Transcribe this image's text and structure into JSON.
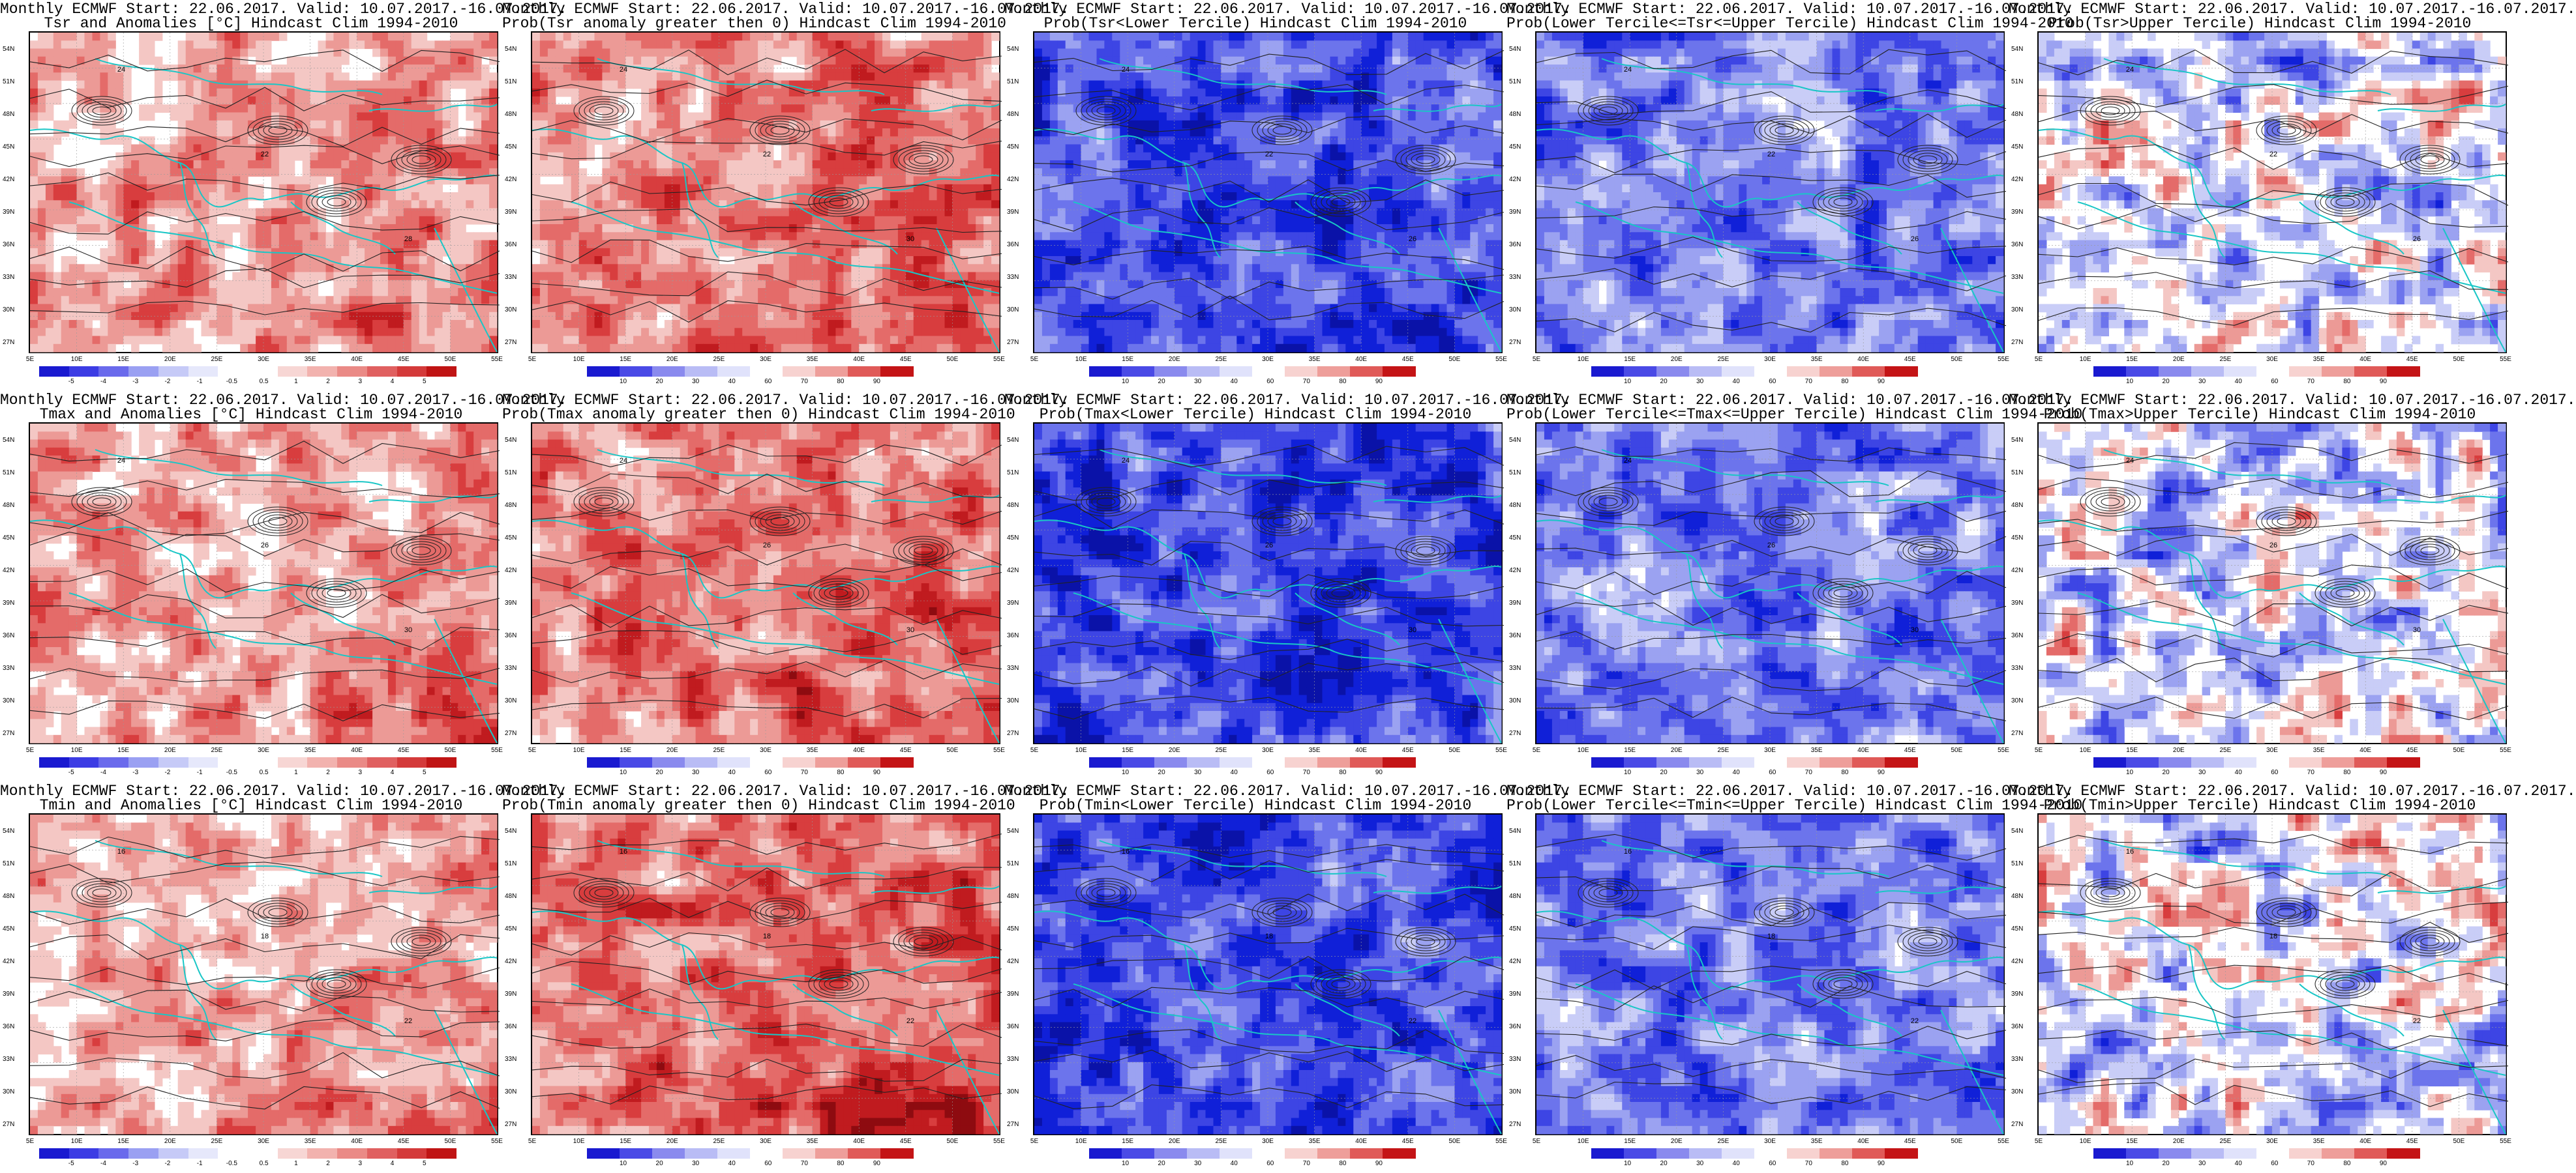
{
  "colors": {
    "warm": [
      "#ffffff",
      "#f4c7c4",
      "#ec9a96",
      "#e46b69",
      "#d83d3e",
      "#c01b1f",
      "#8e0b10"
    ],
    "cool": [
      "#ffffff",
      "#c9cdf7",
      "#9ba2f1",
      "#6c74ec",
      "#3d45e4",
      "#1020d8",
      "#0a12a8"
    ],
    "contour": "#222222",
    "coast": "#19c6c6",
    "anomaly_bar": [
      "#1a1ad0",
      "#3c3ce4",
      "#6a6aec",
      "#9aa0f2",
      "#c6caf7",
      "#e6e8fb",
      "#ffffff",
      "#ffffff",
      "#f7d6d4",
      "#f2b2ae",
      "#ea8a86",
      "#e06060",
      "#d43a3a",
      "#c01414"
    ],
    "prob_bar": [
      "#1a1ad0",
      "#4a4ae6",
      "#8a8aee",
      "#b9bcf5",
      "#e0e2fb",
      "#ffffff",
      "#f7d2d0",
      "#ee9e9a",
      "#e05a58",
      "#c41416"
    ]
  },
  "axes": {
    "lat": [
      "54N",
      "51N",
      "48N",
      "45N",
      "42N",
      "39N",
      "36N",
      "33N",
      "30N",
      "27N"
    ],
    "lon": [
      "5E",
      "10E",
      "15E",
      "20E",
      "25E",
      "30E",
      "35E",
      "40E",
      "45E",
      "50E",
      "55E"
    ]
  },
  "colorbar_ticks": {
    "anomaly": [
      "-5",
      "-4",
      "-3",
      "-2",
      "-1",
      "-0.5",
      "0.5",
      "1",
      "2",
      "3",
      "4",
      "5"
    ],
    "prob": [
      "10",
      "20",
      "30",
      "40",
      "60",
      "70",
      "80",
      "90"
    ]
  },
  "panels": [
    {
      "id": "tsr-anom",
      "title1": "Monthly ECMWF Start: 22.06.2017. Valid: 10.07.2017.-16.07.2017.",
      "title2": "Tsr and Anomalies [°C] Hindcast Clim 1994-2010",
      "bar": "anomaly",
      "bias": 0.25,
      "palette": "warm",
      "contour_labels": [
        "24",
        "22",
        "28"
      ]
    },
    {
      "id": "tsr-pos",
      "title1": "Monthly ECMWF Start: 22.06.2017. Valid: 10.07.2017.-16.07.2017.",
      "title2": "Prob(Tsr anomaly greater then 0) Hindcast Clim 1994-2010",
      "bar": "prob",
      "bias": 0.45,
      "palette": "warm",
      "contour_labels": [
        "24",
        "22",
        "30"
      ]
    },
    {
      "id": "tsr-low",
      "title1": "Monthly ECMWF Start: 22.06.2017. Valid: 10.07.2017.-16.07.2017.",
      "title2": "Prob(Tsr<Lower Tercile) Hindcast Clim 1994-2010",
      "bar": "prob",
      "bias": 0.75,
      "palette": "cool",
      "contour_labels": [
        "24",
        "22",
        "26"
      ]
    },
    {
      "id": "tsr-mid",
      "title1": "Monthly ECMWF Start: 22.06.2017. Valid: 10.07.2017.-16.07.2017.",
      "title2": "Prob(Lower Tercile<=Tsr<=Upper Tercile) Hindcast Clim 1994-2010",
      "bar": "prob",
      "bias": 0.45,
      "palette": "cool",
      "contour_labels": [
        "24",
        "22",
        "26"
      ]
    },
    {
      "id": "tsr-up",
      "title1": "Monthly ECMWF Start: 22.06.2017. Valid: 10.07.2017.-16.07.2017.",
      "title2": "Prob(Tsr>Upper Tercile) Hindcast Clim 1994-2010",
      "bar": "prob",
      "bias": 0.35,
      "palette": "mixed",
      "contour_labels": [
        "24",
        "22",
        "26"
      ]
    },
    {
      "id": "tmax-anom",
      "title1": "Monthly ECMWF Start: 22.06.2017. Valid: 10.07.2017.-16.07.2017.",
      "title2": "Tmax and Anomalies [°C] Hindcast Clim 1994-2010",
      "bar": "anomaly",
      "bias": 0.3,
      "palette": "warm",
      "contour_labels": [
        "24",
        "26",
        "30"
      ]
    },
    {
      "id": "tmax-pos",
      "title1": "Monthly ECMWF Start: 22.06.2017. Valid: 10.07.2017.-16.07.2017.",
      "title2": "Prob(Tmax anomaly greater then 0) Hindcast Clim 1994-2010",
      "bar": "prob",
      "bias": 0.5,
      "palette": "warm",
      "contour_labels": [
        "24",
        "26",
        "30"
      ]
    },
    {
      "id": "tmax-low",
      "title1": "Monthly ECMWF Start: 22.06.2017. Valid: 10.07.2017.-16.07.2017.",
      "title2": "Prob(Tmax<Lower Tercile) Hindcast Clim 1994-2010",
      "bar": "prob",
      "bias": 0.8,
      "palette": "cool",
      "contour_labels": [
        "24",
        "26",
        "30"
      ]
    },
    {
      "id": "tmax-mid",
      "title1": "Monthly ECMWF Start: 22.06.2017. Valid: 10.07.2017.-16.07.2017.",
      "title2": "Prob(Lower Tercile<=Tmax<=Upper Tercile) Hindcast Clim 1994-2010",
      "bar": "prob",
      "bias": 0.4,
      "palette": "cool",
      "contour_labels": [
        "24",
        "26",
        "30"
      ]
    },
    {
      "id": "tmax-up",
      "title1": "Monthly ECMWF Start: 22.06.2017. Valid: 10.07.2017.-16.07.2017.",
      "title2": "Prob(Tmax>Upper Tercile) Hindcast Clim 1994-2010",
      "bar": "prob",
      "bias": 0.3,
      "palette": "mixed",
      "contour_labels": [
        "24",
        "26",
        "30"
      ]
    },
    {
      "id": "tmin-anom",
      "title1": "Monthly ECMWF Start: 22.06.2017. Valid: 10.07.2017.-16.07.2017.",
      "title2": "Tmin and Anomalies [°C] Hindcast Clim 1994-2010",
      "bar": "anomaly",
      "bias": 0.2,
      "palette": "warm",
      "contour_labels": [
        "16",
        "18",
        "22"
      ]
    },
    {
      "id": "tmin-pos",
      "title1": "Monthly ECMWF Start: 22.06.2017. Valid: 10.07.2017.-16.07.2017.",
      "title2": "Prob(Tmin anomaly greater then 0) Hindcast Clim 1994-2010",
      "bar": "prob",
      "bias": 0.55,
      "palette": "warm",
      "contour_labels": [
        "16",
        "18",
        "22"
      ]
    },
    {
      "id": "tmin-low",
      "title1": "Monthly ECMWF Start: 22.06.2017. Valid: 10.07.2017.-16.07.2017.",
      "title2": "Prob(Tmin<Lower Tercile) Hindcast Clim 1994-2010",
      "bar": "prob",
      "bias": 0.75,
      "palette": "cool",
      "contour_labels": [
        "16",
        "18",
        "22"
      ]
    },
    {
      "id": "tmin-mid",
      "title1": "Monthly ECMWF Start: 22.06.2017. Valid: 10.07.2017.-16.07.2017.",
      "title2": "Prob(Lower Tercile<=Tmin<=Upper Tercile) Hindcast Clim 1994-2010",
      "bar": "prob",
      "bias": 0.4,
      "palette": "cool",
      "contour_labels": [
        "16",
        "18",
        "22"
      ]
    },
    {
      "id": "tmin-up",
      "title1": "Monthly ECMWF Start: 22.06.2017. Valid: 10.07.2017.-16.07.2017.",
      "title2": "Prob(Tmin>Upper Tercile) Hindcast Clim 1994-2010",
      "bar": "prob",
      "bias": 0.35,
      "palette": "mixed",
      "contour_labels": [
        "16",
        "18",
        "22"
      ]
    }
  ]
}
